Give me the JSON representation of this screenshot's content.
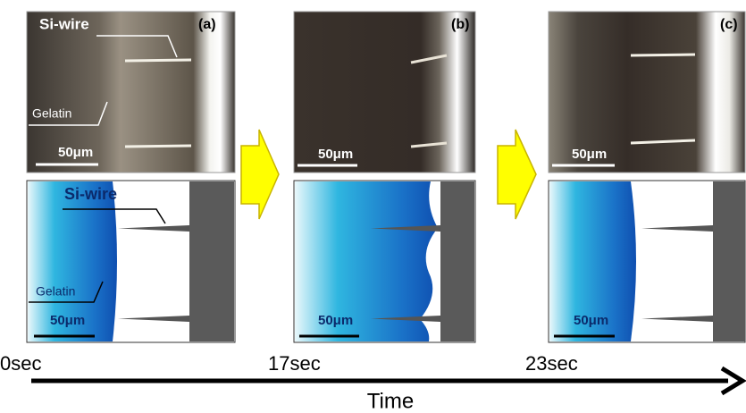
{
  "panels": [
    {
      "label": "(a)",
      "photo": {
        "wire_label": "Si-wire",
        "gel_label": "Gelatin",
        "scale": "50μm"
      },
      "schematic": {
        "wire_label": "Si-wire",
        "gel_label": "Gelatin",
        "scale": "50μm"
      }
    },
    {
      "label": "(b)",
      "photo": {
        "scale": "50μm"
      },
      "schematic": {
        "scale": "50μm"
      }
    },
    {
      "label": "(c)",
      "photo": {
        "scale": "50μm"
      },
      "schematic": {
        "scale": "50μm"
      }
    }
  ],
  "timeline": {
    "times": [
      "0sec",
      "17sec",
      "23sec"
    ],
    "axis_label": "Time"
  }
}
